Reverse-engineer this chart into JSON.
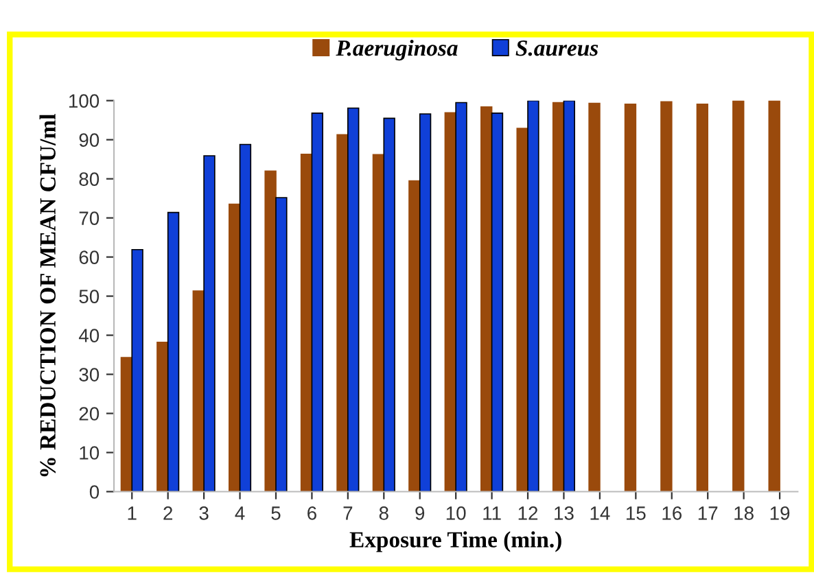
{
  "chart_data": {
    "type": "bar",
    "xlabel": "Exposure Time (min.)",
    "ylabel": "% REDUCTION OF MEAN CFU/ml",
    "categories": [
      "1",
      "2",
      "3",
      "4",
      "5",
      "6",
      "7",
      "8",
      "9",
      "10",
      "11",
      "12",
      "13",
      "14",
      "15",
      "16",
      "17",
      "18",
      "19"
    ],
    "series": [
      {
        "name": "P.aeruginosa",
        "color": "#9a4a0c",
        "values": [
          34.3,
          38.2,
          51.3,
          73.5,
          82,
          86.3,
          91.3,
          86.2,
          79.5,
          96.9,
          98.4,
          92.9,
          99.5,
          99.3,
          99.1,
          99.7,
          99.1,
          100,
          100
        ]
      },
      {
        "name": "S.aureus",
        "color": "#1040d8",
        "values": [
          61.9,
          71.4,
          85.9,
          88.8,
          75.2,
          96.8,
          98.1,
          95.5,
          96.6,
          99.5,
          96.8,
          100,
          100,
          null,
          null,
          null,
          null,
          null,
          null
        ]
      }
    ],
    "ylim": [
      0,
      100
    ],
    "yticks": [
      0,
      10,
      20,
      30,
      40,
      50,
      60,
      70,
      80,
      90,
      100
    ],
    "grid": false,
    "legend": "top"
  }
}
